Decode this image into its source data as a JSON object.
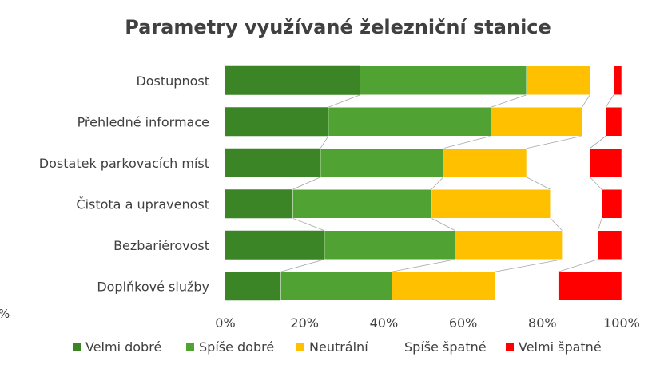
{
  "chart_data": {
    "type": "bar",
    "orientation": "horizontal",
    "stacked": "percent",
    "title": "Parametry využívané železniční stanice",
    "categories": [
      "Dostupnost",
      "Přehledné informace",
      "Dostatek parkovacích míst",
      "Čistota a upravenost",
      "Bezbariérovost",
      "Doplňkové služby"
    ],
    "series": [
      {
        "name": "Velmi dobré",
        "color": "#3c8527",
        "values": [
          34,
          26,
          24,
          17,
          25,
          14
        ]
      },
      {
        "name": "Spíše dobré",
        "color": "#50a232",
        "values": [
          42,
          41,
          31,
          35,
          33,
          28
        ]
      },
      {
        "name": "Neutrální",
        "color": "#ffc000",
        "values": [
          16,
          23,
          21,
          30,
          27,
          26
        ]
      },
      {
        "name": "Spíše špatné",
        "color": "#ffffff",
        "values": [
          6,
          6,
          16,
          13,
          9,
          16
        ]
      },
      {
        "name": "Velmi špatné",
        "color": "#ff0000",
        "values": [
          2,
          4,
          8,
          5,
          6,
          16
        ]
      }
    ],
    "x_ticks": [
      "0%",
      "20%",
      "40%",
      "60%",
      "80%",
      "100%"
    ],
    "xlim": [
      0,
      100
    ],
    "legend_position": "bottom",
    "series_lines": true,
    "stray_label": "%"
  }
}
